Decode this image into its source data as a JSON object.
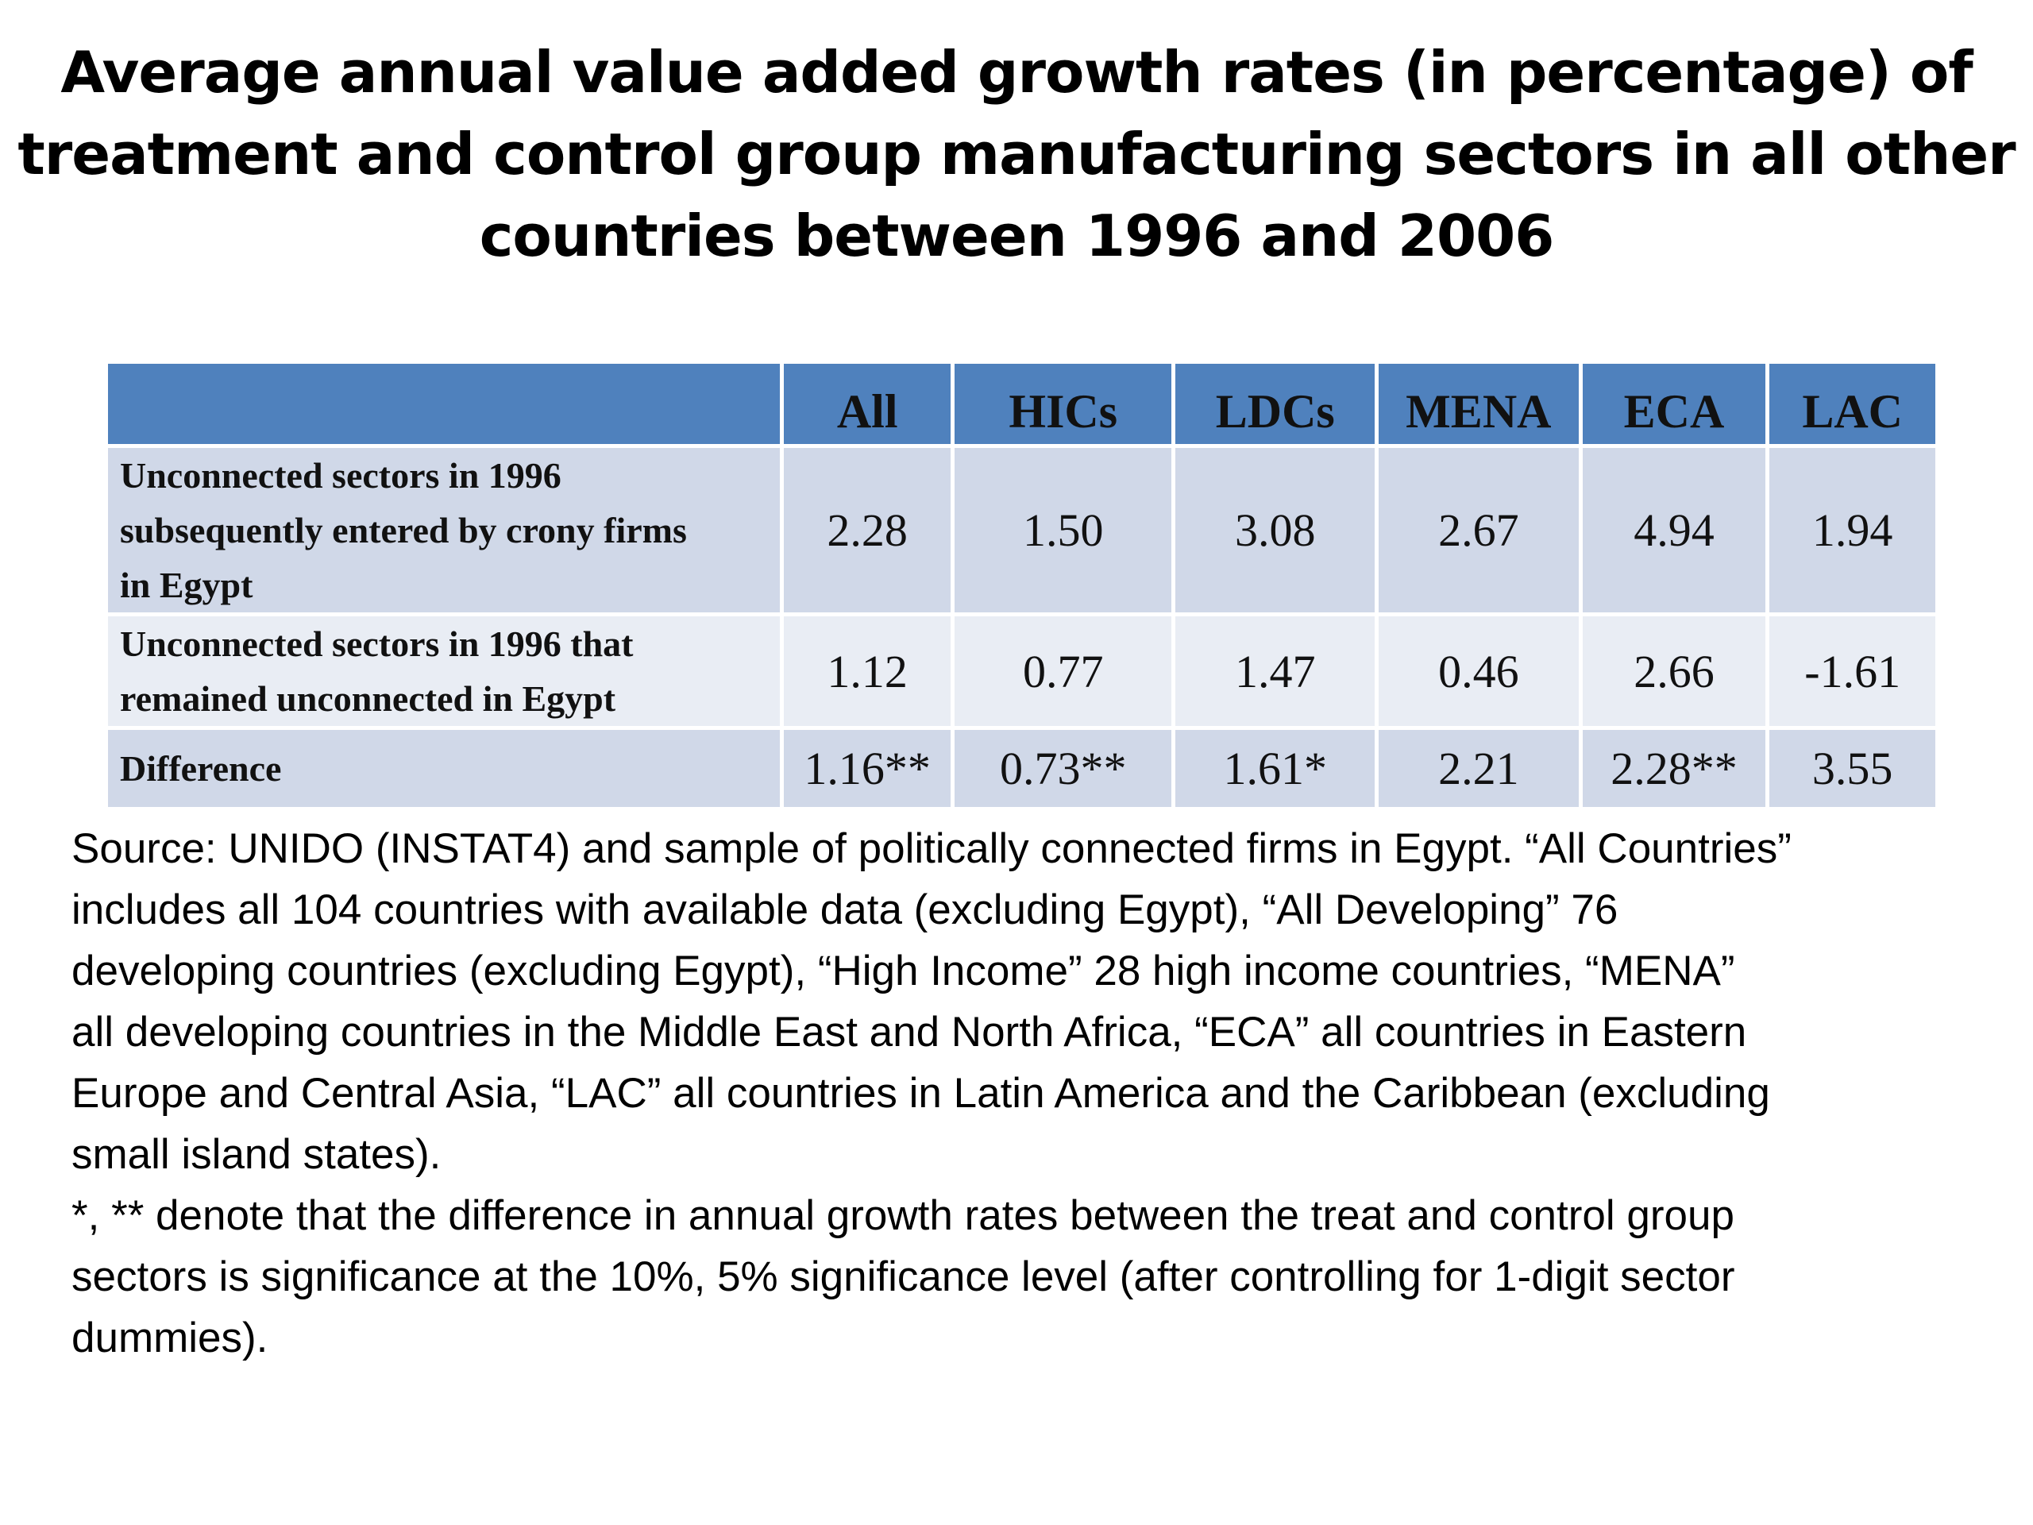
{
  "title": {
    "lines": [
      "Average annual value added growth rates (in percentage) of",
      "treatment and control group manufacturing sectors in all other",
      "countries between 1996 and 2006"
    ]
  },
  "table": {
    "header_color": "#4f81bd",
    "columns": [
      "",
      "All",
      "HICs",
      "LDCs",
      "MENA",
      "ECA",
      "LAC"
    ],
    "rows": [
      {
        "label_lines": [
          "Unconnected sectors in 1996",
          "subsequently entered by crony firms",
          "in Egypt"
        ],
        "values": [
          "2.28",
          "1.50",
          "3.08",
          "2.67",
          "4.94",
          "1.94"
        ]
      },
      {
        "label_lines": [
          "Unconnected sectors in 1996 that",
          "remained unconnected in Egypt"
        ],
        "values": [
          "1.12",
          "0.77",
          "1.47",
          "0.46",
          "2.66",
          "-1.61"
        ]
      },
      {
        "label_lines": [
          "Difference"
        ],
        "values": [
          "1.16**",
          "0.73**",
          "1.61*",
          "2.21",
          "2.28**",
          "3.55"
        ]
      }
    ]
  },
  "notes": {
    "lines": [
      "Source: UNIDO (INSTAT4) and sample of politically connected firms in Egypt.  “All Countries”",
      "includes all 104 countries with available data (excluding Egypt), “All Developing” 76",
      "developing countries (excluding Egypt), “High Income” 28 high income countries, “MENA”",
      "all developing countries in the Middle East and North Africa, “ECA” all countries in Eastern",
      "Europe and Central Asia, “LAC” all countries in Latin America and the Caribbean (excluding",
      "small island states).",
      "*, ** denote that the difference in annual growth rates between the treat and control group",
      "sectors is significance at the 10%, 5% significance level (after controlling for 1-digit sector",
      "dummies)."
    ]
  }
}
